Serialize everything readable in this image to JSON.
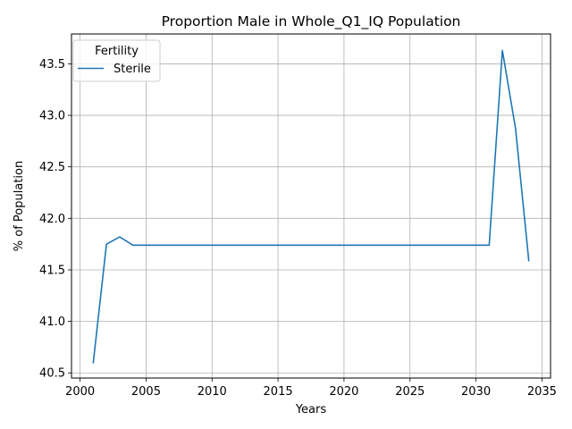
{
  "chart_data": {
    "type": "line",
    "title": "Proportion Male in Whole_Q1_IQ Population",
    "xlabel": "Years",
    "ylabel": "% of Population",
    "xlim": [
      1999.35,
      2035.65
    ],
    "ylim": [
      40.45,
      43.79
    ],
    "xticks": [
      2000,
      2005,
      2010,
      2015,
      2020,
      2025,
      2030,
      2035
    ],
    "yticks": [
      40.5,
      41.0,
      41.5,
      42.0,
      42.5,
      43.0,
      43.5
    ],
    "grid": true,
    "legend": {
      "title": "Fertility",
      "position": "top-left"
    },
    "series": [
      {
        "name": "Sterile",
        "color": "#1f77b4",
        "x": [
          2001,
          2002,
          2003,
          2004,
          2005,
          2006,
          2007,
          2008,
          2009,
          2010,
          2011,
          2012,
          2013,
          2014,
          2015,
          2016,
          2017,
          2018,
          2019,
          2020,
          2021,
          2022,
          2023,
          2024,
          2025,
          2026,
          2027,
          2028,
          2029,
          2030,
          2031,
          2032,
          2033,
          2034
        ],
        "y": [
          40.6,
          41.75,
          41.82,
          41.74,
          41.74,
          41.74,
          41.74,
          41.74,
          41.74,
          41.74,
          41.74,
          41.74,
          41.74,
          41.74,
          41.74,
          41.74,
          41.74,
          41.74,
          41.74,
          41.74,
          41.74,
          41.74,
          41.74,
          41.74,
          41.74,
          41.74,
          41.74,
          41.74,
          41.74,
          41.74,
          41.74,
          43.63,
          42.87,
          41.59
        ]
      }
    ]
  }
}
